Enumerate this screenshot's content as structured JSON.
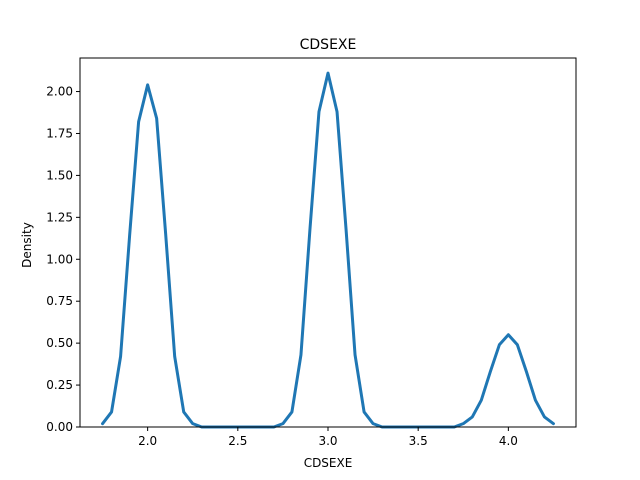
{
  "chart_data": {
    "type": "line",
    "title": "CDSEXE",
    "xlabel": "CDSEXE",
    "ylabel": "Density",
    "xlim": [
      1.625,
      4.375
    ],
    "ylim": [
      0.0,
      2.2
    ],
    "x_ticks": [
      "2.0",
      "2.5",
      "3.0",
      "3.5",
      "4.0"
    ],
    "y_ticks": [
      "0.00",
      "0.25",
      "0.50",
      "0.75",
      "1.00",
      "1.25",
      "1.50",
      "1.75",
      "2.00"
    ],
    "grid": false,
    "legend": "none",
    "series": [
      {
        "color": "#1f77b4",
        "x": [
          1.75,
          1.8,
          1.85,
          1.9,
          1.95,
          2.0,
          2.05,
          2.1,
          2.15,
          2.2,
          2.25,
          2.3,
          2.4,
          2.5,
          2.6,
          2.7,
          2.75,
          2.8,
          2.85,
          2.9,
          2.95,
          3.0,
          3.05,
          3.1,
          3.15,
          3.2,
          3.25,
          3.3,
          3.4,
          3.5,
          3.6,
          3.7,
          3.75,
          3.8,
          3.85,
          3.9,
          3.95,
          4.0,
          4.05,
          4.1,
          4.15,
          4.2,
          4.25
        ],
        "y": [
          0.02,
          0.09,
          0.42,
          1.14,
          1.82,
          2.04,
          1.84,
          1.15,
          0.42,
          0.09,
          0.02,
          0.0,
          0.0,
          0.0,
          0.0,
          0.0,
          0.02,
          0.09,
          0.43,
          1.18,
          1.88,
          2.11,
          1.88,
          1.18,
          0.43,
          0.09,
          0.02,
          0.0,
          0.0,
          0.0,
          0.0,
          0.0,
          0.02,
          0.06,
          0.16,
          0.33,
          0.49,
          0.55,
          0.49,
          0.33,
          0.16,
          0.06,
          0.02
        ]
      }
    ]
  }
}
